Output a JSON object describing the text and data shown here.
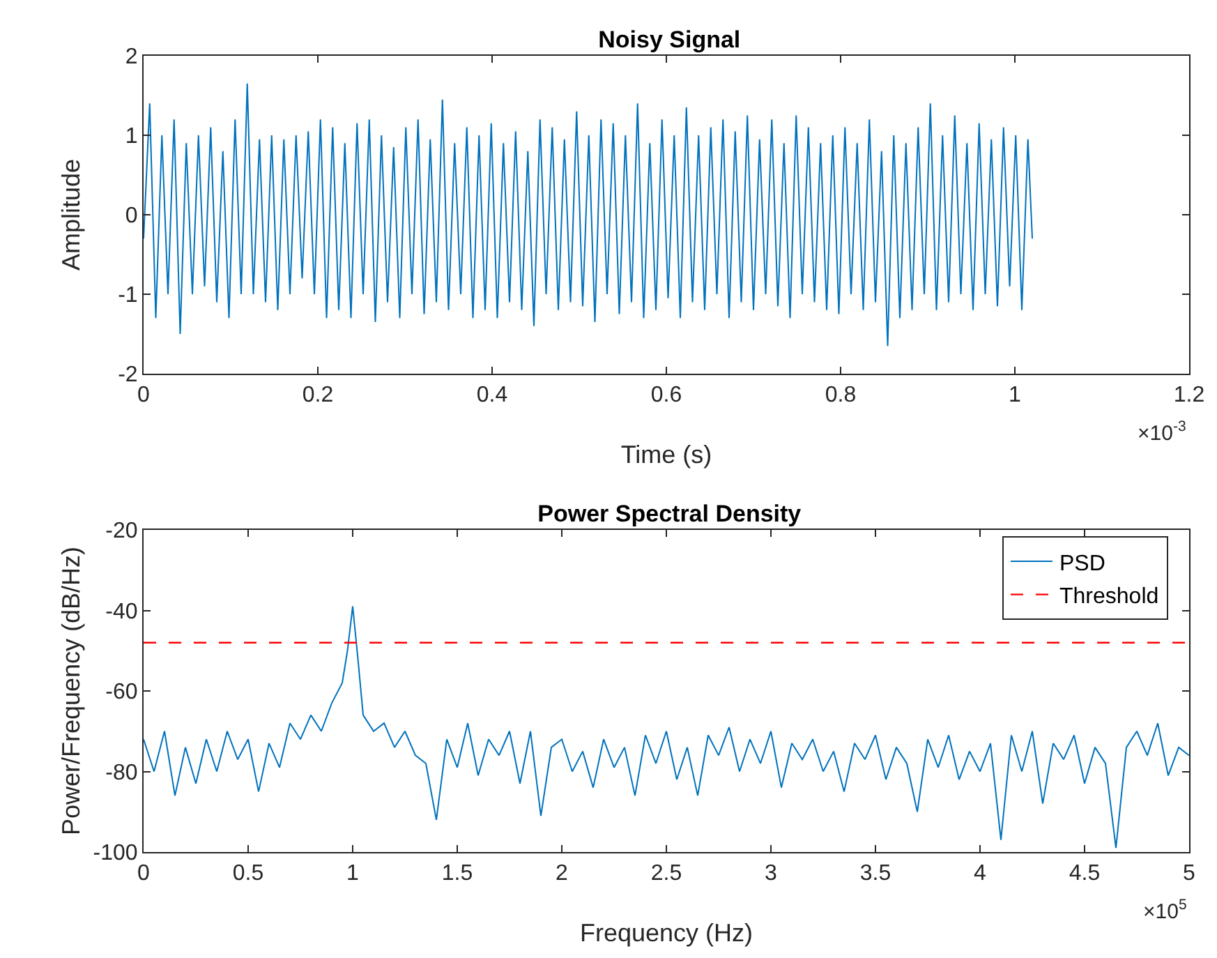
{
  "chart_data": [
    {
      "type": "line",
      "title": "Noisy Signal",
      "xlabel": "Time (s)",
      "ylabel": "Amplitude",
      "annotations": [
        "×10$^{-3}$"
      ],
      "grid": false,
      "legend": false,
      "marker": "none",
      "line_style": "solid",
      "xlim": [
        0,
        1.2
      ],
      "xticks": [
        0,
        0.2,
        0.4,
        0.6,
        0.8,
        1,
        1.2
      ],
      "ylim": [
        -2,
        2
      ],
      "yticks": [
        -2,
        -1,
        0,
        1,
        2
      ],
      "series": [
        {
          "color": "#0072bd",
          "x": [
            0,
            0.007,
            0.014,
            0.021,
            0.028,
            0.035,
            0.042,
            0.049,
            0.056,
            0.063,
            0.07,
            0.077,
            0.084,
            0.091,
            0.098,
            0.105,
            0.112,
            0.119,
            0.126,
            0.133,
            0.14,
            0.147,
            0.154,
            0.161,
            0.168,
            0.175,
            0.182,
            0.189,
            0.196,
            0.203,
            0.21,
            0.217,
            0.224,
            0.231,
            0.238,
            0.245,
            0.252,
            0.259,
            0.266,
            0.273,
            0.28,
            0.287,
            0.294,
            0.301,
            0.308,
            0.315,
            0.322,
            0.329,
            0.336,
            0.343,
            0.35,
            0.357,
            0.364,
            0.371,
            0.378,
            0.385,
            0.392,
            0.399,
            0.406,
            0.413,
            0.42,
            0.427,
            0.434,
            0.441,
            0.448,
            0.455,
            0.462,
            0.469,
            0.476,
            0.483,
            0.49,
            0.497,
            0.504,
            0.511,
            0.518,
            0.525,
            0.532,
            0.539,
            0.546,
            0.553,
            0.56,
            0.567,
            0.574,
            0.581,
            0.588,
            0.595,
            0.602,
            0.609,
            0.616,
            0.623,
            0.63,
            0.637,
            0.644,
            0.651,
            0.658,
            0.665,
            0.672,
            0.679,
            0.686,
            0.693,
            0.7,
            0.707,
            0.714,
            0.721,
            0.728,
            0.735,
            0.742,
            0.749,
            0.756,
            0.763,
            0.77,
            0.777,
            0.784,
            0.791,
            0.798,
            0.805,
            0.812,
            0.819,
            0.826,
            0.833,
            0.84,
            0.847,
            0.854,
            0.861,
            0.868,
            0.875,
            0.882,
            0.889,
            0.896,
            0.903,
            0.91,
            0.917,
            0.924,
            0.931,
            0.938,
            0.945,
            0.952,
            0.959,
            0.966,
            0.973,
            0.98,
            0.987,
            0.994,
            1.001,
            1.008,
            1.015,
            1.02
          ],
          "values": [
            -0.3,
            1.4,
            -1.3,
            1.0,
            -1.0,
            1.2,
            -1.5,
            0.9,
            -1.0,
            1.0,
            -0.9,
            1.1,
            -1.1,
            0.8,
            -1.3,
            1.2,
            -1.0,
            1.65,
            -1.0,
            0.95,
            -1.1,
            1.0,
            -1.2,
            0.95,
            -1.0,
            1.0,
            -0.8,
            1.05,
            -1.0,
            1.2,
            -1.3,
            1.1,
            -1.2,
            0.9,
            -1.3,
            1.15,
            -1.0,
            1.2,
            -1.35,
            1.0,
            -1.1,
            0.85,
            -1.3,
            1.1,
            -1.0,
            1.2,
            -1.25,
            0.95,
            -1.1,
            1.45,
            -1.2,
            0.9,
            -1.0,
            1.1,
            -1.3,
            1.0,
            -1.2,
            1.15,
            -1.3,
            0.9,
            -1.1,
            1.05,
            -1.2,
            0.8,
            -1.4,
            1.2,
            -1.0,
            1.1,
            -1.2,
            0.95,
            -1.1,
            1.3,
            -1.15,
            1.0,
            -1.35,
            1.2,
            -1.0,
            1.15,
            -1.25,
            1.0,
            -1.1,
            1.4,
            -1.3,
            0.9,
            -1.2,
            1.2,
            -1.05,
            1.0,
            -1.3,
            1.35,
            -1.1,
            1.0,
            -1.2,
            1.1,
            -1.0,
            1.2,
            -1.3,
            1.05,
            -1.1,
            1.25,
            -1.2,
            0.95,
            -1.0,
            1.2,
            -1.15,
            0.9,
            -1.3,
            1.25,
            -1.0,
            1.1,
            -1.1,
            0.9,
            -1.2,
            1.0,
            -1.25,
            1.1,
            -1.0,
            0.9,
            -1.2,
            1.2,
            -1.1,
            0.8,
            -1.65,
            1.0,
            -1.3,
            0.9,
            -1.2,
            1.1,
            -1.0,
            1.4,
            -1.2,
            1.0,
            -1.1,
            1.25,
            -1.0,
            0.9,
            -1.2,
            1.15,
            -1.0,
            0.95,
            -1.15,
            1.1,
            -0.9,
            1.0,
            -1.2,
            0.95,
            -0.3
          ]
        }
      ]
    },
    {
      "type": "line",
      "title": "Power Spectral Density",
      "xlabel": "Frequency (Hz)",
      "ylabel": "Power/Frequency (dB/Hz)",
      "annotations": [
        "×10$^{5}$"
      ],
      "grid": false,
      "legend": "top right",
      "marker": "none",
      "line_style": "solid",
      "xlim": [
        0,
        5
      ],
      "xticks": [
        0,
        0.5,
        1,
        1.5,
        2,
        2.5,
        3,
        3.5,
        4,
        4.5,
        5
      ],
      "ylim": [
        -100,
        -20
      ],
      "yticks": [
        -100,
        -80,
        -60,
        -40,
        -20
      ],
      "ref_lines": [
        {
          "axis": "y",
          "value": -48,
          "label": "Threshold",
          "color": "#ff0000",
          "line_style": "dashed"
        }
      ],
      "series": [
        {
          "name": "PSD",
          "color": "#0072bd",
          "x": [
            0,
            0.05,
            0.1,
            0.15,
            0.2,
            0.25,
            0.3,
            0.35,
            0.4,
            0.45,
            0.5,
            0.55,
            0.6,
            0.65,
            0.7,
            0.75,
            0.8,
            0.85,
            0.9,
            0.95,
            0.975,
            1.0,
            1.025,
            1.05,
            1.1,
            1.15,
            1.2,
            1.25,
            1.3,
            1.35,
            1.4,
            1.45,
            1.5,
            1.55,
            1.6,
            1.65,
            1.7,
            1.75,
            1.8,
            1.85,
            1.9,
            1.95,
            2.0,
            2.05,
            2.1,
            2.15,
            2.2,
            2.25,
            2.3,
            2.35,
            2.4,
            2.45,
            2.5,
            2.55,
            2.6,
            2.65,
            2.7,
            2.75,
            2.8,
            2.85,
            2.9,
            2.95,
            3.0,
            3.05,
            3.1,
            3.15,
            3.2,
            3.25,
            3.3,
            3.35,
            3.4,
            3.45,
            3.5,
            3.55,
            3.6,
            3.65,
            3.7,
            3.75,
            3.8,
            3.85,
            3.9,
            3.95,
            4.0,
            4.05,
            4.1,
            4.15,
            4.2,
            4.25,
            4.3,
            4.35,
            4.4,
            4.45,
            4.5,
            4.55,
            4.6,
            4.65,
            4.7,
            4.75,
            4.8,
            4.85,
            4.9,
            4.95,
            5.0
          ],
          "values": [
            -72,
            -80,
            -70,
            -86,
            -74,
            -83,
            -72,
            -80,
            -70,
            -77,
            -72,
            -85,
            -73,
            -79,
            -68,
            -72,
            -66,
            -70,
            -63,
            -58,
            -50,
            -39,
            -52,
            -66,
            -70,
            -68,
            -74,
            -70,
            -76,
            -78,
            -92,
            -72,
            -79,
            -68,
            -81,
            -72,
            -76,
            -70,
            -83,
            -70,
            -91,
            -74,
            -72,
            -80,
            -75,
            -84,
            -72,
            -79,
            -74,
            -86,
            -71,
            -78,
            -70,
            -82,
            -74,
            -86,
            -71,
            -76,
            -69,
            -80,
            -72,
            -78,
            -70,
            -84,
            -73,
            -77,
            -72,
            -80,
            -75,
            -85,
            -73,
            -77,
            -71,
            -82,
            -74,
            -78,
            -90,
            -72,
            -79,
            -71,
            -82,
            -75,
            -80,
            -73,
            -97,
            -71,
            -80,
            -70,
            -88,
            -73,
            -77,
            -71,
            -83,
            -74,
            -78,
            -99,
            -74,
            -70,
            -76,
            -68,
            -81,
            -74,
            -76
          ]
        }
      ]
    }
  ]
}
